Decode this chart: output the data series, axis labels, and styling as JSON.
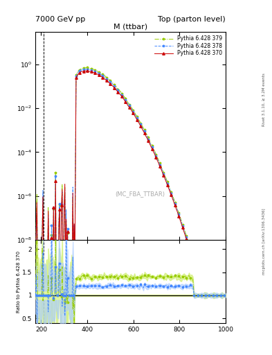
{
  "title_left": "7000 GeV pp",
  "title_right": "Top (parton level)",
  "main_title": "M (ttbar)",
  "watermark": "(MC_FBA_TTBAR)",
  "rivet_label": "Rivet 3.1.10, ≥ 3.2M events",
  "arxiv_label": "mcplots.cern.ch [arXiv:1306.3436]",
  "ylabel_ratio": "Ratio to Pythia 6.428 370",
  "xlim": [
    175,
    1000
  ],
  "ylim_main": [
    1e-08,
    30
  ],
  "ylim_ratio": [
    0.4,
    2.2
  ],
  "series": [
    {
      "label": "Pythia 6.428 370",
      "color": "#cc0000",
      "linestyle": "-",
      "marker": "^",
      "markersize": 2.5
    },
    {
      "label": "Pythia 6.428 378",
      "color": "#4488ff",
      "linestyle": "--",
      "marker": "*",
      "markersize": 2.5
    },
    {
      "label": "Pythia 6.428 379",
      "color": "#99cc00",
      "linestyle": "-.",
      "marker": "*",
      "markersize": 2.5
    }
  ],
  "ratio_band_color_ref": "#eeff88",
  "ratio_band_color_378": "#aaccff",
  "ratio_band_color_379": "#ccee66",
  "vline_x": 210,
  "x_ticks": [
    200,
    400,
    600,
    800,
    1000
  ],
  "yticks_ratio": [
    0.5,
    1.0,
    1.5,
    2.0
  ],
  "ratio_378": 1.2,
  "ratio_379": 1.4
}
